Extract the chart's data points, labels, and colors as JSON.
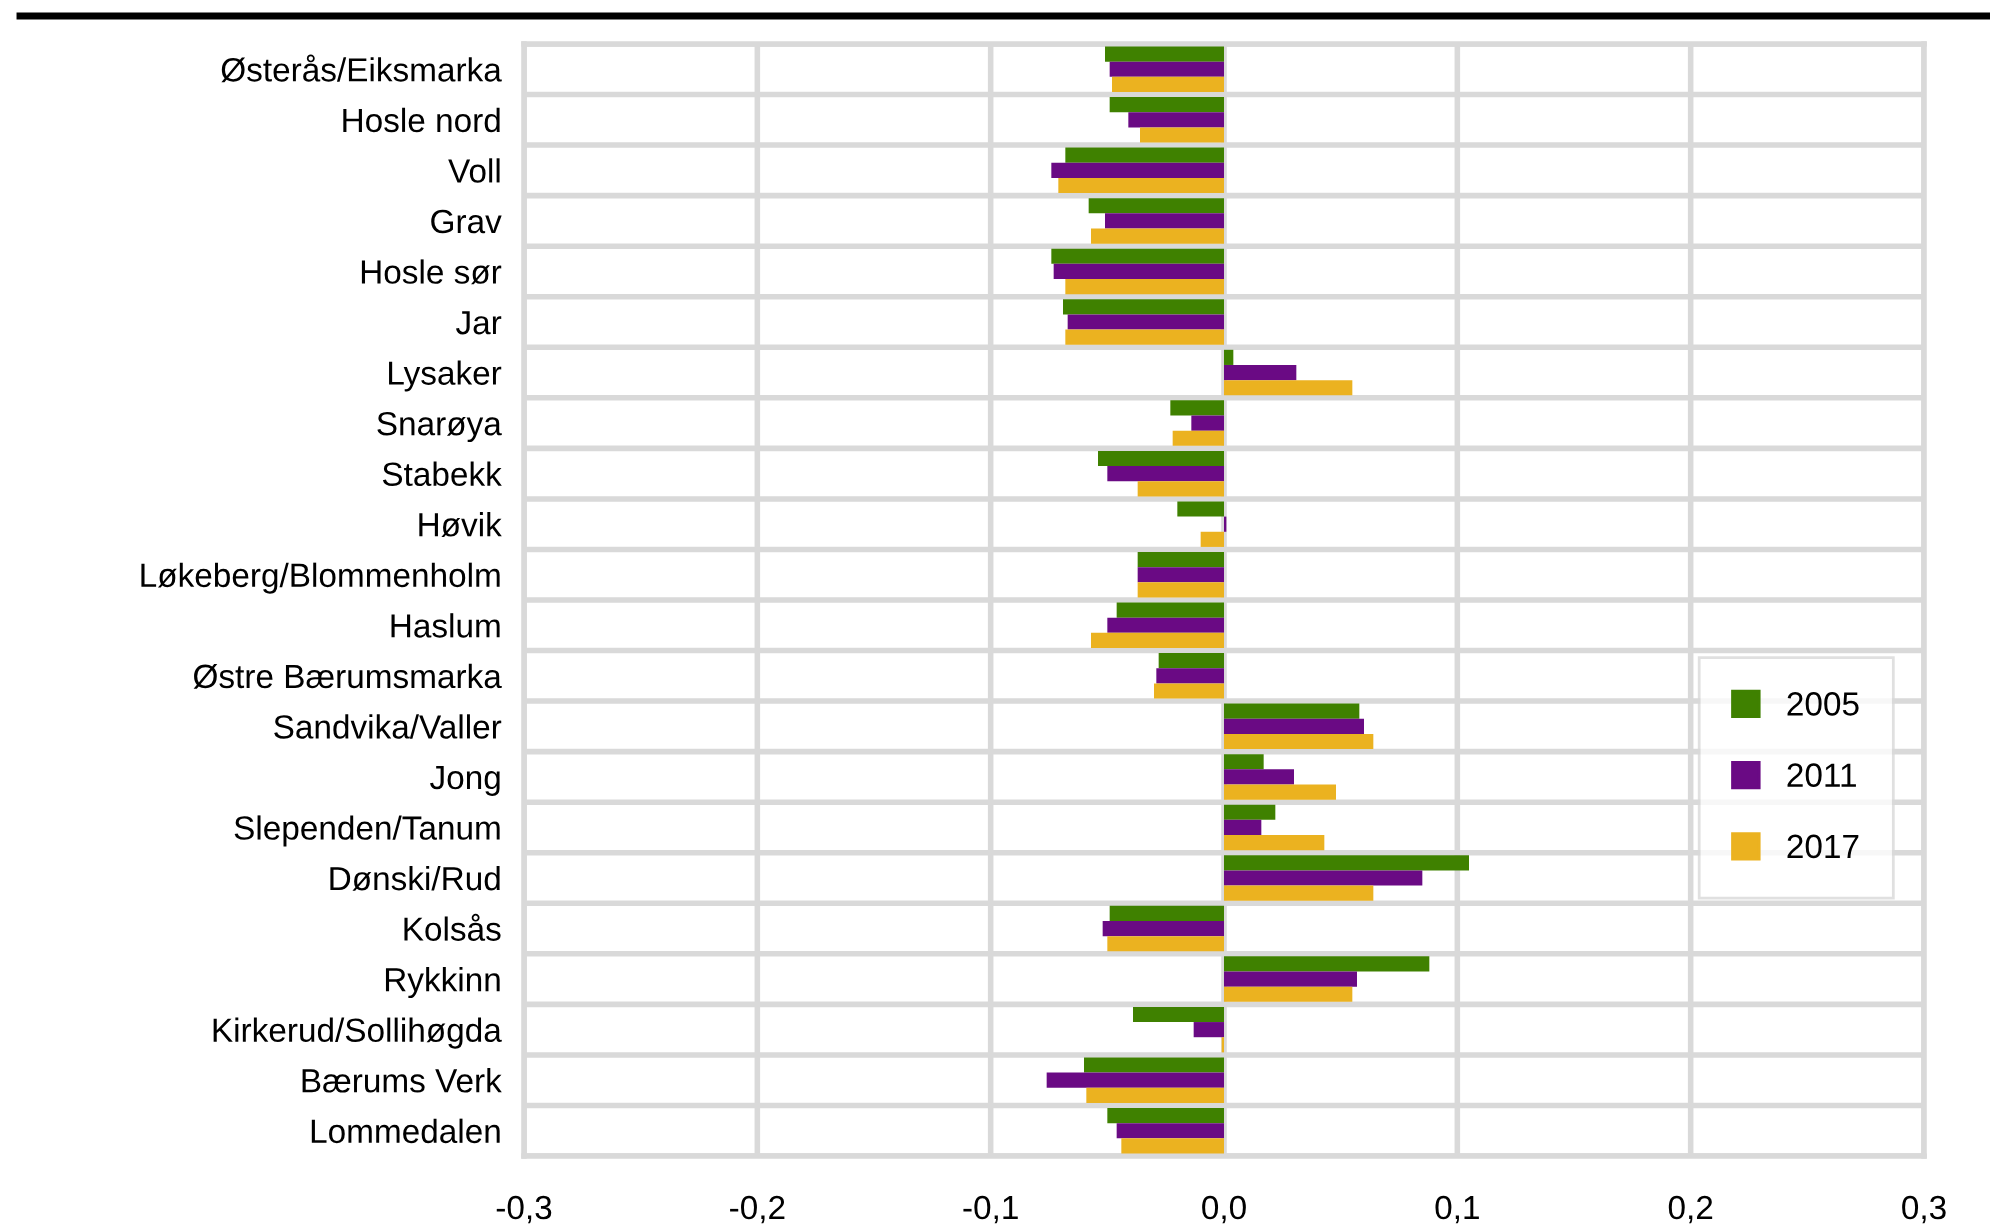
{
  "chart_data": {
    "type": "bar",
    "orientation": "horizontal",
    "categories": [
      "Østerås/Eiksmarka",
      "Hosle nord",
      "Voll",
      "Grav",
      "Hosle sør",
      "Jar",
      "Lysaker",
      "Snarøya",
      "Stabekk",
      "Høvik",
      "Løkeberg/Blommenholm",
      "Haslum",
      "Østre Bærumsmarka",
      "Sandvika/Valler",
      "Jong",
      "Slependen/Tanum",
      "Dønski/Rud",
      "Kolsås",
      "Rykkinn",
      "Kirkerud/Sollihøgda",
      "Bærums Verk",
      "Lommedalen"
    ],
    "series": [
      {
        "name": "2005",
        "color": "#3f8100",
        "values": [
          -0.051,
          -0.049,
          -0.068,
          -0.058,
          -0.074,
          -0.069,
          0.004,
          -0.023,
          -0.054,
          -0.02,
          -0.037,
          -0.046,
          -0.028,
          0.058,
          0.017,
          0.022,
          0.105,
          -0.049,
          0.088,
          -0.039,
          -0.06,
          -0.05
        ]
      },
      {
        "name": "2011",
        "color": "#6a0a84",
        "values": [
          -0.049,
          -0.041,
          -0.074,
          -0.051,
          -0.073,
          -0.067,
          0.031,
          -0.014,
          -0.05,
          0.001,
          -0.037,
          -0.05,
          -0.029,
          0.06,
          0.03,
          0.016,
          0.085,
          -0.052,
          0.057,
          -0.013,
          -0.076,
          -0.046
        ]
      },
      {
        "name": "2017",
        "color": "#ebb220",
        "values": [
          -0.048,
          -0.036,
          -0.071,
          -0.057,
          -0.068,
          -0.068,
          0.055,
          -0.022,
          -0.037,
          -0.01,
          -0.037,
          -0.057,
          -0.03,
          0.064,
          0.048,
          0.043,
          0.064,
          -0.05,
          0.055,
          -0.001,
          -0.059,
          -0.044
        ]
      }
    ],
    "xlim": [
      -0.3,
      0.3
    ],
    "xticks": [
      {
        "value": -0.3,
        "label": "-0,3"
      },
      {
        "value": -0.2,
        "label": "-0,2"
      },
      {
        "value": -0.1,
        "label": "-0,1"
      },
      {
        "value": 0,
        "label": "0,0"
      },
      {
        "value": 0.1,
        "label": "0,1"
      },
      {
        "value": 0.2,
        "label": "0,2"
      },
      {
        "value": 0.3,
        "label": "0,3"
      }
    ],
    "grid": true,
    "legend": "right"
  }
}
